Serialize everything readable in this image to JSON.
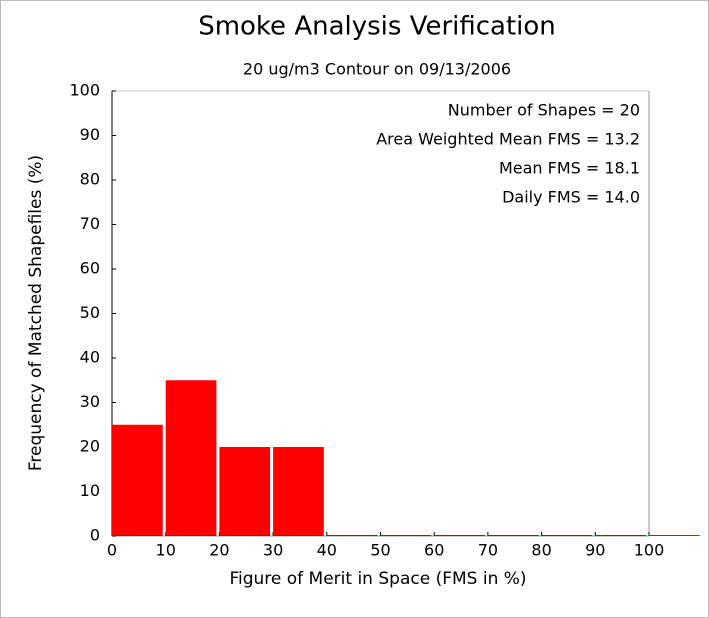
{
  "chart_data": {
    "type": "histogram",
    "title": "Smoke Analysis Verification",
    "subtitle": "20 ug/m3 Contour on 09/13/2006",
    "x_label": "Figure of Merit in Space (FMS in %)",
    "y_label": "Frequency of Matched Shapefiles (%)",
    "bins": [
      0,
      10,
      20,
      30,
      40,
      50,
      60,
      70,
      80,
      90,
      100,
      110
    ],
    "values": [
      25,
      35,
      20,
      20,
      0,
      0,
      0,
      0,
      0,
      0,
      0
    ],
    "color": "#ff0000",
    "xlim": [
      0,
      100
    ],
    "ylim": [
      0,
      100
    ],
    "xticks": [
      0,
      10,
      20,
      30,
      40,
      50,
      60,
      70,
      80,
      90,
      100
    ],
    "yticks": [
      0,
      10,
      20,
      30,
      40,
      50,
      60,
      70,
      80,
      90,
      100
    ],
    "annotations": [
      "Number of Shapes = 20",
      "Area Weighted Mean FMS = 13.2",
      "Mean FMS = 18.1",
      "Daily FMS = 14.0"
    ]
  }
}
